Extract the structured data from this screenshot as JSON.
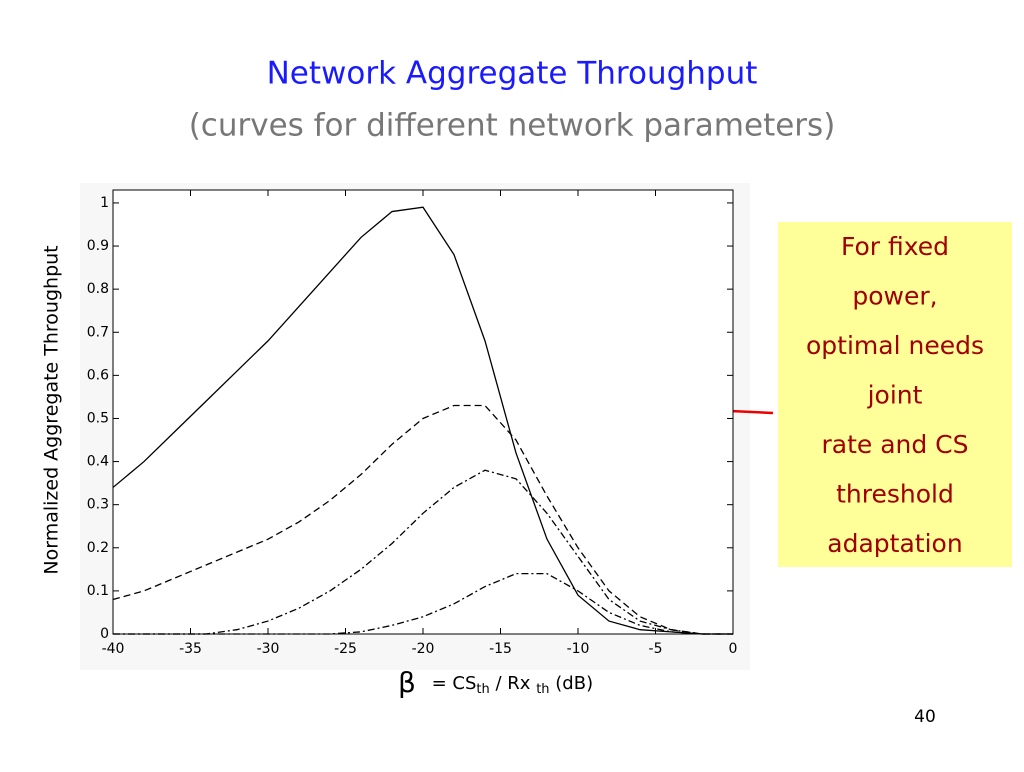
{
  "chart_data": {
    "type": "line",
    "title": "Network Aggregate Throughput",
    "subtitle": "(curves for different network parameters)",
    "y_label": "Normalized Aggregate Throughput",
    "x_label": {
      "symbol": "β",
      "pre": "= CS",
      "sub1": "th",
      "mid": "/ Rx",
      "sub2": "th",
      "post": "(dB)"
    },
    "annotation": [
      "For fixed",
      "power,",
      "optimal needs",
      "joint",
      "rate and CS",
      "threshold",
      "adaptation"
    ],
    "page_number": "40",
    "x": [
      -40,
      -38,
      -36,
      -34,
      -32,
      -30,
      -28,
      -26,
      -24,
      -22,
      -20,
      -18,
      -16,
      -14,
      -12,
      -10,
      -8,
      -6,
      -4,
      -2,
      0
    ],
    "series": [
      {
        "color": "#000000",
        "dash": "solid",
        "values": [
          0.34,
          0.4,
          0.47,
          0.54,
          0.61,
          0.68,
          0.76,
          0.84,
          0.92,
          0.98,
          0.99,
          0.88,
          0.68,
          0.42,
          0.22,
          0.09,
          0.03,
          0.01,
          0.005,
          0,
          0
        ]
      },
      {
        "color": "#000000",
        "dash": "dashed",
        "values": [
          0.08,
          0.1,
          0.13,
          0.16,
          0.19,
          0.22,
          0.26,
          0.31,
          0.37,
          0.44,
          0.5,
          0.53,
          0.53,
          0.45,
          0.32,
          0.2,
          0.1,
          0.04,
          0.01,
          0,
          0
        ]
      },
      {
        "color": "#000000",
        "dash": "dashdot",
        "values": [
          0,
          0,
          0,
          0,
          0.01,
          0.03,
          0.06,
          0.1,
          0.15,
          0.21,
          0.28,
          0.34,
          0.38,
          0.36,
          0.28,
          0.18,
          0.08,
          0.03,
          0.01,
          0,
          0
        ]
      },
      {
        "color": "#000000",
        "dash": "dashdot",
        "values": [
          0,
          0,
          0,
          0,
          0,
          0,
          0,
          0,
          0.005,
          0.02,
          0.04,
          0.07,
          0.11,
          0.14,
          0.14,
          0.1,
          0.05,
          0.02,
          0.005,
          0,
          0
        ]
      }
    ],
    "xlim": [
      -40,
      0
    ],
    "xticks": [
      -40,
      -35,
      -30,
      -25,
      -20,
      -15,
      -10,
      -5,
      0
    ],
    "ylim": [
      0,
      1.03
    ],
    "yticks": [
      0,
      0.1,
      0.2,
      0.3,
      0.4,
      0.5,
      0.6,
      0.7,
      0.8,
      0.9,
      1
    ],
    "grid": false
  }
}
